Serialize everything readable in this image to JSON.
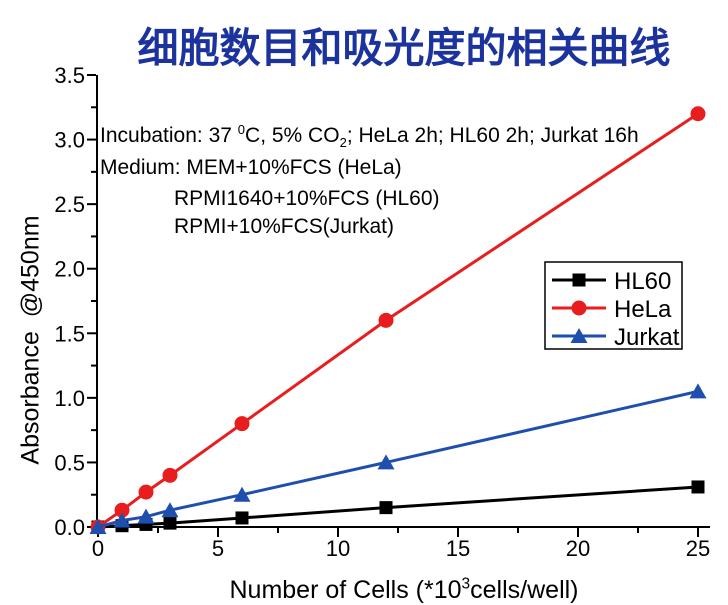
{
  "title": {
    "text": "细胞数目和吸光度的相关曲线",
    "color": "#1c339e"
  },
  "annotation": {
    "incubation": {
      "prefix": "Incubation: 37 ",
      "sup": "0",
      "mid": "C, 5% CO",
      "sub": "2",
      "suffix": "; HeLa 2h; HL60 2h; Jurkat 16h"
    },
    "medium_line1": "Medium: MEM+10%FCS (HeLa)",
    "medium_line2": "RPMI1640+10%FCS (HL60)",
    "medium_line3": "RPMI+10%FCS(Jurkat)"
  },
  "axis_labels": {
    "x_prefix": "Number of Cells (*10",
    "x_sup": "3",
    "x_suffix": "cells/well)",
    "y": "Absorbance  @450nm"
  },
  "chart_data": {
    "type": "line",
    "title": "细胞数目和吸光度的相关曲线",
    "xlabel": "Number of Cells (*10^3 cells/well)",
    "ylabel": "Absorbance @450nm",
    "x": [
      0,
      1,
      2,
      3,
      6,
      12,
      25
    ],
    "series": [
      {
        "name": "HL60",
        "color": "#000000",
        "marker": "square",
        "values": [
          0,
          0.01,
          0.02,
          0.03,
          0.07,
          0.15,
          0.31
        ]
      },
      {
        "name": "HeLa",
        "color": "#e81e1e",
        "marker": "circle",
        "values": [
          0,
          0.13,
          0.27,
          0.4,
          0.8,
          1.6,
          3.2
        ]
      },
      {
        "name": "Jurkat",
        "color": "#1f4fae",
        "marker": "triangle",
        "values": [
          0,
          0.05,
          0.08,
          0.13,
          0.25,
          0.5,
          1.05
        ]
      }
    ],
    "xlim": [
      0,
      25.5
    ],
    "ylim": [
      0,
      3.5
    ],
    "xticks": [
      "0",
      "5",
      "10",
      "15",
      "20",
      "25"
    ],
    "yticks": [
      "0.0",
      "0.5",
      "1.0",
      "1.5",
      "2.0",
      "2.5",
      "3.0",
      "3.5"
    ],
    "x_minor_step": 2.5,
    "y_minor_step": 0.25,
    "grid": false,
    "legend_position": "right-middle",
    "legend_order": [
      "HL60",
      "HeLa",
      "Jurkat"
    ]
  }
}
